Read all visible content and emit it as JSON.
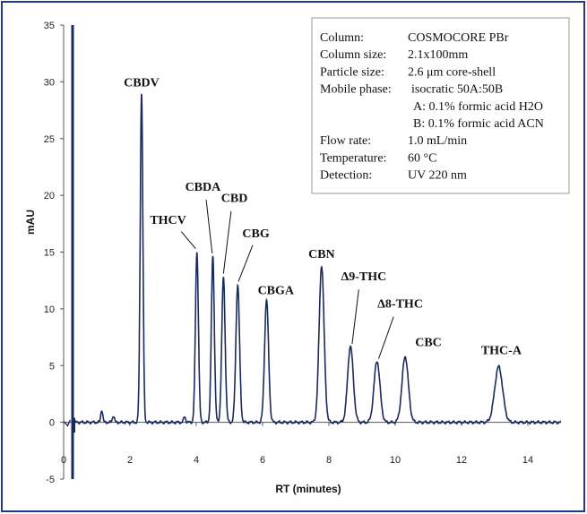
{
  "chart_data": {
    "type": "line",
    "xlabel": "RT (minutes)",
    "ylabel": "mAU",
    "xlim": [
      0,
      15
    ],
    "ylim": [
      -5,
      35
    ],
    "x_ticks": [
      0,
      2,
      4,
      6,
      8,
      10,
      12,
      14
    ],
    "y_ticks": [
      -5,
      0,
      5,
      10,
      15,
      20,
      25,
      30,
      35
    ],
    "grid": false,
    "colors": {
      "trace": "#1a2a5a",
      "frame": "#1f3a8a"
    },
    "solvent_front": {
      "x": 0.27,
      "y_max": 35,
      "y_min": -5
    },
    "minor_peaks": [
      {
        "x": 1.15,
        "y": 1.1,
        "width": 0.03
      },
      {
        "x": 1.5,
        "y": 0.6,
        "width": 0.03
      },
      {
        "x": 3.65,
        "y": 0.5,
        "width": 0.03
      }
    ],
    "peaks": [
      {
        "name": "CBDV",
        "rt": 2.35,
        "height": 29.0,
        "width": 0.04
      },
      {
        "name": "THCV",
        "rt": 4.02,
        "height": 15.0,
        "width": 0.045
      },
      {
        "name": "CBDA",
        "rt": 4.5,
        "height": 14.6,
        "width": 0.045
      },
      {
        "name": "CBD",
        "rt": 4.82,
        "height": 12.8,
        "width": 0.05
      },
      {
        "name": "CBG",
        "rt": 5.25,
        "height": 12.1,
        "width": 0.055
      },
      {
        "name": "CBGA",
        "rt": 6.12,
        "height": 10.8,
        "width": 0.06
      },
      {
        "name": "CBN",
        "rt": 7.78,
        "height": 13.8,
        "width": 0.075
      },
      {
        "name": "Δ9-THC",
        "rt": 8.65,
        "height": 6.7,
        "width": 0.085
      },
      {
        "name": "Δ8-THC",
        "rt": 9.45,
        "height": 5.4,
        "width": 0.09
      },
      {
        "name": "CBC",
        "rt": 10.3,
        "height": 5.8,
        "width": 0.095
      },
      {
        "name": "THC-A",
        "rt": 13.12,
        "height": 4.9,
        "width": 0.12
      }
    ],
    "annotations": [
      {
        "label": "CBDV",
        "x": 2.35,
        "y": 29.6,
        "pointer": false
      },
      {
        "label": "THCV",
        "x": 3.15,
        "y": 17.5,
        "pointer": true,
        "to": [
          3.98,
          15.3
        ],
        "from": [
          3.55,
          16.8
        ]
      },
      {
        "label": "CBDA",
        "x": 4.2,
        "y": 20.4,
        "pointer": true,
        "to": [
          4.48,
          14.9
        ],
        "from": [
          4.3,
          19.6
        ]
      },
      {
        "label": "CBD",
        "x": 5.15,
        "y": 19.4,
        "pointer": true,
        "to": [
          4.82,
          13.1
        ],
        "from": [
          5.05,
          18.6
        ]
      },
      {
        "label": "CBG",
        "x": 5.8,
        "y": 16.3,
        "pointer": true,
        "to": [
          5.27,
          12.4
        ],
        "from": [
          5.7,
          15.6
        ]
      },
      {
        "label": "CBGA",
        "x": 6.4,
        "y": 11.3,
        "pointer": false
      },
      {
        "label": "CBN",
        "x": 7.78,
        "y": 14.5,
        "pointer": false
      },
      {
        "label": "Δ9-THC",
        "x": 9.05,
        "y": 12.5,
        "pointer": true,
        "to": [
          8.7,
          6.9
        ],
        "from": [
          8.9,
          11.7
        ]
      },
      {
        "label": "Δ8-THC",
        "x": 10.15,
        "y": 10.1,
        "pointer": true,
        "to": [
          9.5,
          5.6
        ],
        "from": [
          9.95,
          9.3
        ]
      },
      {
        "label": "CBC",
        "x": 11.0,
        "y": 6.7,
        "pointer": false
      },
      {
        "label": "THC-A",
        "x": 13.2,
        "y": 6.0,
        "pointer": false
      }
    ]
  },
  "info_box": {
    "rows": [
      {
        "label": "Column:",
        "value": "COSMOCORE PBr"
      },
      {
        "label": "Column size:",
        "value": "2.1x100mm"
      },
      {
        "label": "Particle size:",
        "value": "2.6 μm core-shell"
      },
      {
        "label": "Mobile phase:",
        "value": "isocratic 50A:50B"
      },
      {
        "label": "",
        "value": "A: 0.1% formic acid H2O"
      },
      {
        "label": "",
        "value": "B: 0.1% formic acid ACN"
      },
      {
        "label": "Flow rate:",
        "value": "1.0 mL/min"
      },
      {
        "label": "Temperature:",
        "value": "60 °C"
      },
      {
        "label": "Detection:",
        "value": "UV 220 nm"
      }
    ]
  }
}
